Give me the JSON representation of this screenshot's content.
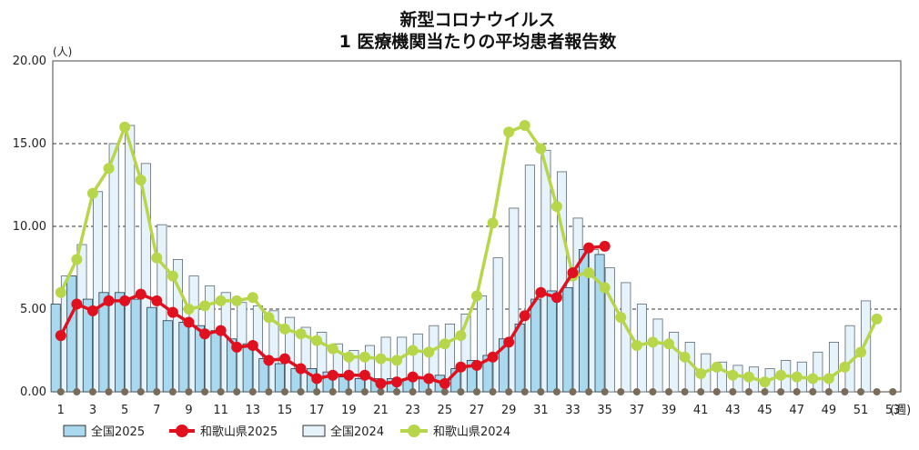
{
  "chart_data": {
    "type": "bar",
    "title_line1": "新型コロナウイルス",
    "title_line2": "1 医療機関当たりの平均患者報告数",
    "y_unit": "(人)",
    "x_unit": "(週)",
    "ylim": [
      0,
      20
    ],
    "y_ticks": [
      "0.00",
      "5.00",
      "10.00",
      "15.00",
      "20.00"
    ],
    "x_ticks": [
      1,
      3,
      5,
      7,
      9,
      11,
      13,
      15,
      17,
      19,
      21,
      23,
      25,
      27,
      29,
      31,
      33,
      35,
      37,
      39,
      41,
      43,
      45,
      47,
      49,
      51,
      53
    ],
    "weeks": 53,
    "grid": "dashed horizontal",
    "legend_position": "bottom",
    "colors": {
      "national_2025": "#a9d9ef",
      "wakayama_2025": "#e0101e",
      "national_2024": "#e6f3fa",
      "wakayama_2024": "#b8d64a",
      "zero_marker": "#7a6a58"
    },
    "series": [
      {
        "name": "全国2025",
        "kind": "bar",
        "values": [
          5.3,
          7.0,
          5.6,
          6.0,
          6.0,
          5.6,
          5.1,
          4.3,
          4.2,
          4.0,
          3.7,
          3.2,
          2.9,
          2.0,
          1.7,
          1.4,
          1.4,
          1.2,
          0.9,
          0.8,
          0.8,
          0.8,
          0.8,
          0.8,
          1.0,
          1.4,
          1.9,
          2.2,
          3.2,
          4.1,
          5.6,
          6.1,
          6.3,
          8.6,
          8.3
        ]
      },
      {
        "name": "和歌山県2025",
        "kind": "line",
        "values": [
          3.4,
          5.3,
          4.9,
          5.5,
          5.5,
          5.9,
          5.5,
          4.8,
          4.2,
          3.5,
          3.7,
          2.7,
          2.8,
          1.9,
          2.0,
          1.4,
          0.8,
          1.0,
          1.0,
          1.0,
          0.5,
          0.6,
          0.9,
          0.8,
          0.5,
          1.5,
          1.6,
          2.1,
          3.0,
          4.6,
          6.0,
          5.7,
          7.2,
          8.7,
          8.8
        ]
      },
      {
        "name": "全国2024",
        "kind": "bar",
        "values": [
          7.0,
          8.9,
          12.1,
          15.0,
          16.1,
          13.8,
          10.1,
          8.0,
          7.0,
          6.4,
          6.0,
          5.4,
          5.2,
          4.9,
          4.5,
          3.9,
          3.6,
          2.9,
          2.5,
          2.8,
          3.3,
          3.3,
          3.5,
          4.0,
          4.1,
          4.7,
          5.8,
          8.1,
          11.1,
          13.7,
          14.6,
          13.3,
          10.5,
          8.6,
          7.5,
          6.6,
          5.3,
          4.4,
          3.6,
          3.0,
          2.3,
          1.8,
          1.6,
          1.5,
          1.4,
          1.9,
          1.8,
          2.4,
          3.0,
          4.0,
          5.5,
          0,
          0
        ]
      },
      {
        "name": "和歌山県2024",
        "kind": "line",
        "values": [
          6.0,
          8.0,
          12.0,
          13.5,
          16.0,
          12.8,
          8.1,
          7.0,
          5.0,
          5.2,
          5.5,
          5.5,
          5.7,
          4.5,
          3.8,
          3.5,
          3.1,
          2.6,
          2.1,
          2.1,
          2.0,
          1.9,
          2.5,
          2.4,
          2.9,
          3.4,
          5.8,
          10.2,
          15.7,
          16.1,
          14.7,
          11.2,
          7.0,
          7.2,
          6.3,
          4.5,
          2.8,
          3.0,
          2.9,
          2.1,
          1.1,
          1.5,
          1.0,
          0.9,
          0.6,
          1.0,
          0.9,
          0.8,
          0.8,
          1.5,
          2.4,
          4.4
        ]
      }
    ]
  }
}
